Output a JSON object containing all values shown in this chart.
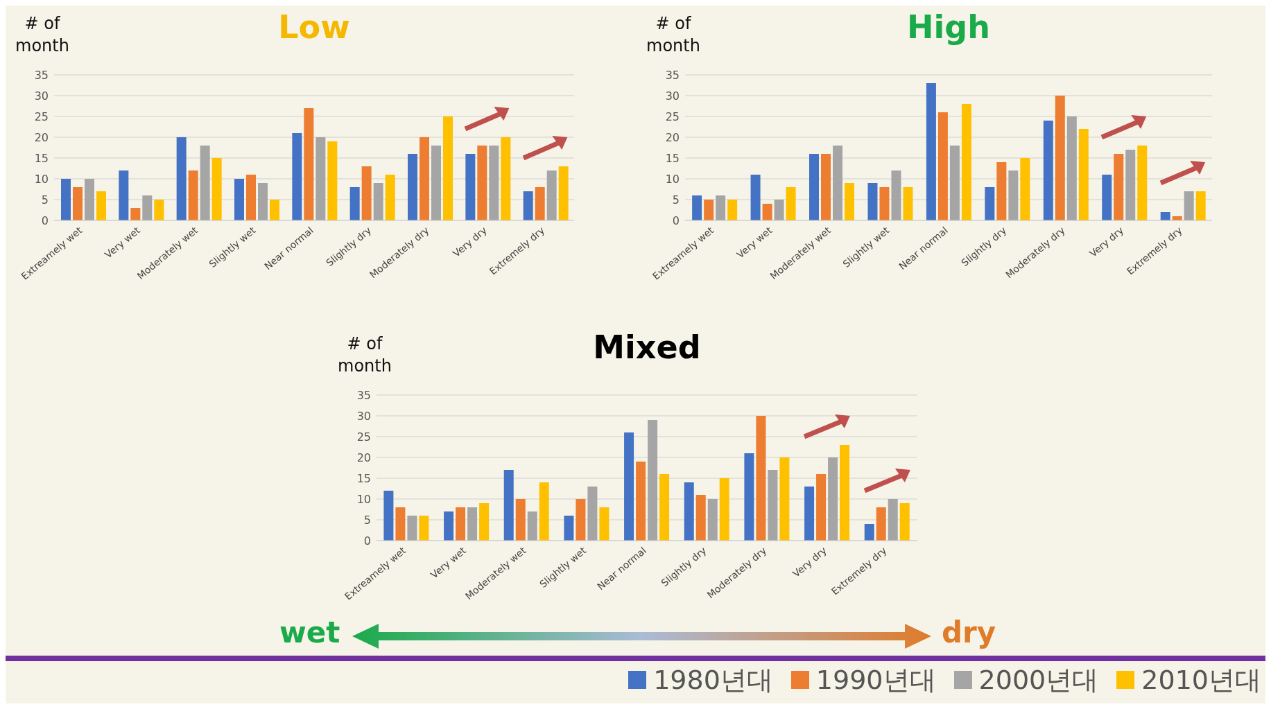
{
  "chart_data": [
    {
      "type": "bar",
      "title": "Low",
      "ylabel": "# of month",
      "categories": [
        "Extreamely wet",
        "Very wet",
        "Moderately wet",
        "Slightly wet",
        "Near normal",
        "Slightly dry",
        "Moderately dry",
        "Very dry",
        "Extremely dry"
      ],
      "ylim": [
        0,
        35
      ],
      "yticks": [
        0,
        5,
        10,
        15,
        20,
        25,
        30,
        35
      ],
      "grid": "y",
      "series": [
        {
          "color": "#4472c4",
          "values": [
            10,
            12,
            20,
            10,
            21,
            8,
            16,
            16,
            7
          ]
        },
        {
          "color": "#ed7d31",
          "values": [
            8,
            3,
            12,
            11,
            27,
            13,
            20,
            18,
            8
          ]
        },
        {
          "color": "#a5a5a5",
          "values": [
            10,
            6,
            18,
            9,
            20,
            9,
            18,
            18,
            12
          ]
        },
        {
          "color": "#ffc000",
          "values": [
            7,
            5,
            15,
            5,
            19,
            11,
            25,
            20,
            13
          ]
        }
      ]
    },
    {
      "type": "bar",
      "title": "High",
      "ylabel": "# of month",
      "categories": [
        "Extreamely wet",
        "Very wet",
        "Moderately wet",
        "Slightly wet",
        "Near normal",
        "Slightly dry",
        "Moderately dry",
        "Very dry",
        "Extremely dry"
      ],
      "ylim": [
        0,
        35
      ],
      "yticks": [
        0,
        5,
        10,
        15,
        20,
        25,
        30,
        35
      ],
      "grid": "y",
      "series": [
        {
          "color": "#4472c4",
          "values": [
            6,
            11,
            16,
            9,
            33,
            8,
            24,
            11,
            2
          ]
        },
        {
          "color": "#ed7d31",
          "values": [
            5,
            4,
            16,
            8,
            26,
            14,
            30,
            16,
            1
          ]
        },
        {
          "color": "#a5a5a5",
          "values": [
            6,
            5,
            18,
            12,
            18,
            12,
            25,
            17,
            7
          ]
        },
        {
          "color": "#ffc000",
          "values": [
            5,
            8,
            9,
            8,
            28,
            15,
            22,
            18,
            7
          ]
        }
      ]
    },
    {
      "type": "bar",
      "title": "Mixed",
      "ylabel": "# of month",
      "categories": [
        "Extreamely wet",
        "Very wet",
        "Moderately wet",
        "Slightly wet",
        "Near normal",
        "Slightly dry",
        "Moderately dry",
        "Very dry",
        "Extremely dry"
      ],
      "ylim": [
        0,
        35
      ],
      "yticks": [
        0,
        5,
        10,
        15,
        20,
        25,
        30,
        35
      ],
      "grid": "y",
      "legend": "bottom",
      "annotations": [
        "wet",
        "dry"
      ],
      "series": [
        {
          "name": "1980년대",
          "color": "#4472c4",
          "values": [
            12,
            7,
            17,
            6,
            26,
            14,
            21,
            13,
            4
          ]
        },
        {
          "name": "1990년대",
          "color": "#ed7d31",
          "values": [
            8,
            8,
            10,
            10,
            19,
            11,
            30,
            16,
            8
          ]
        },
        {
          "name": "2000년대",
          "color": "#a5a5a5",
          "values": [
            6,
            8,
            7,
            13,
            29,
            10,
            17,
            20,
            10
          ]
        },
        {
          "name": "2010년대",
          "color": "#ffc000",
          "values": [
            6,
            9,
            14,
            8,
            16,
            15,
            20,
            23,
            9
          ]
        }
      ]
    }
  ]
}
